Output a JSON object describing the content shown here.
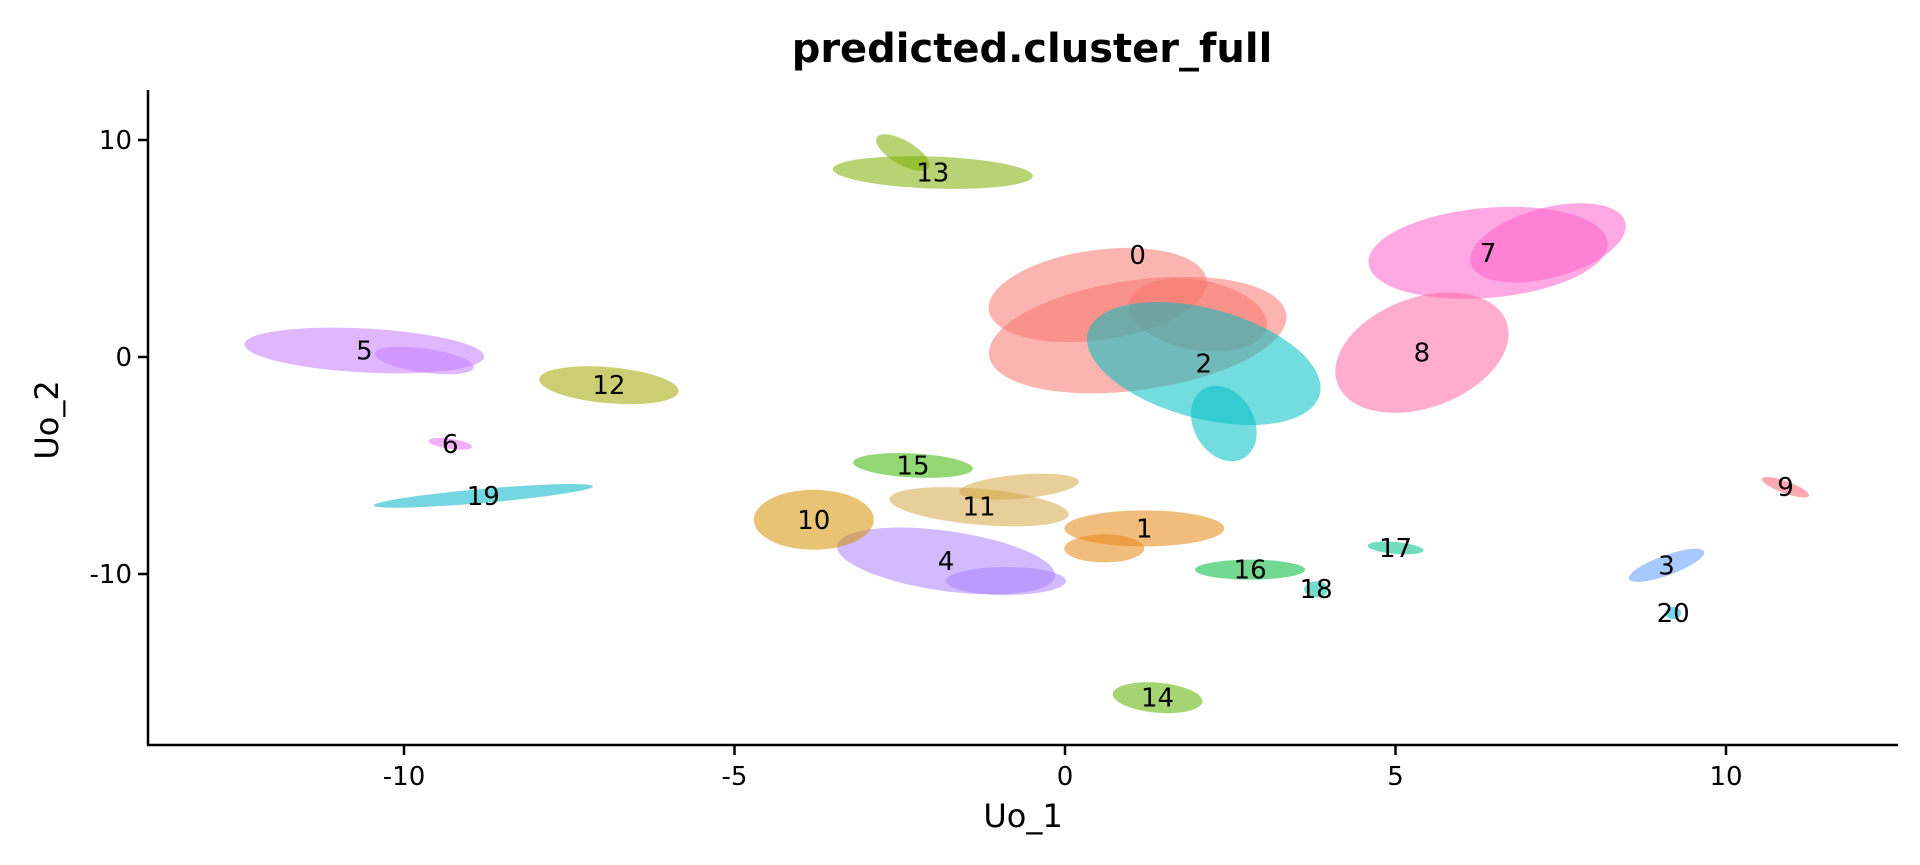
{
  "chart_data": {
    "type": "scatter",
    "title": "predicted.cluster_full",
    "xlabel": "Uo_1",
    "ylabel": "Uo_2",
    "xlim": [
      -13.5,
      12.6
    ],
    "ylim": [
      -17.8,
      12.4
    ],
    "xticks": [
      -10,
      -5,
      0,
      5,
      10
    ],
    "yticks": [
      10,
      0,
      -10
    ],
    "grid": false,
    "legend": "none",
    "clusters": [
      {
        "label": "0",
        "x": 1.1,
        "y": 4.7,
        "color": "#F8766D"
      },
      {
        "label": "1",
        "x": 1.2,
        "y": -7.9,
        "color": "#E68613"
      },
      {
        "label": "2",
        "x": 2.1,
        "y": -0.3,
        "color": "#00BFC4"
      },
      {
        "label": "3",
        "x": 9.1,
        "y": -9.6,
        "color": "#619CFF"
      },
      {
        "label": "4",
        "x": -1.8,
        "y": -9.4,
        "color": "#AB82FF"
      },
      {
        "label": "5",
        "x": -10.6,
        "y": 0.3,
        "color": "#C77CFF"
      },
      {
        "label": "6",
        "x": -9.3,
        "y": -4.0,
        "color": "#E76BF3"
      },
      {
        "label": "7",
        "x": 6.4,
        "y": 4.8,
        "color": "#FF61CC"
      },
      {
        "label": "8",
        "x": 5.4,
        "y": 0.2,
        "color": "#FF67A4"
      },
      {
        "label": "9",
        "x": 10.9,
        "y": -6.0,
        "color": "#F8606F"
      },
      {
        "label": "10",
        "x": -3.8,
        "y": -7.5,
        "color": "#D39200"
      },
      {
        "label": "11",
        "x": -1.3,
        "y": -6.9,
        "color": "#D6A545"
      },
      {
        "label": "12",
        "x": -6.9,
        "y": -1.3,
        "color": "#A3A500"
      },
      {
        "label": "13",
        "x": -2.0,
        "y": 8.5,
        "color": "#7CAE00"
      },
      {
        "label": "14",
        "x": 1.4,
        "y": -15.7,
        "color": "#5BB300"
      },
      {
        "label": "15",
        "x": -2.3,
        "y": -5.0,
        "color": "#39B600"
      },
      {
        "label": "16",
        "x": 2.8,
        "y": -9.8,
        "color": "#00BA38"
      },
      {
        "label": "17",
        "x": 5.0,
        "y": -8.8,
        "color": "#00C08B"
      },
      {
        "label": "18",
        "x": 3.8,
        "y": -10.7,
        "color": "#00BFA0"
      },
      {
        "label": "19",
        "x": -8.8,
        "y": -6.4,
        "color": "#00B4C7"
      },
      {
        "label": "20",
        "x": 9.2,
        "y": -11.8,
        "color": "#00B8E7"
      }
    ]
  }
}
